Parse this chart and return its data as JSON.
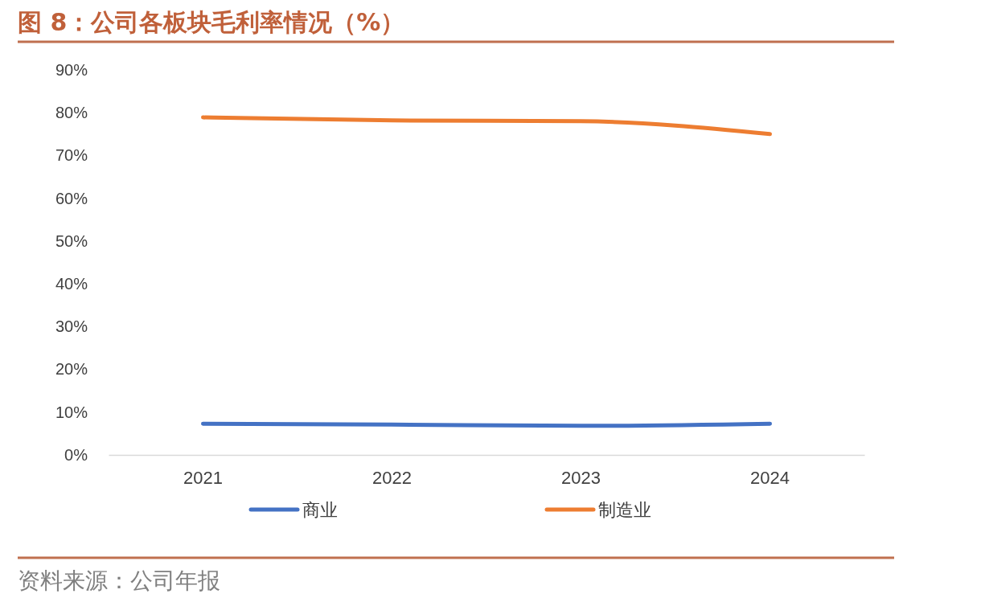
{
  "chart_data": {
    "type": "line",
    "title": "图 8：公司各板块毛利率情况（%）",
    "categories": [
      "2021",
      "2022",
      "2023",
      "2024"
    ],
    "series": [
      {
        "name": "商业",
        "color": "#4472c4",
        "values": [
          7.3,
          7.1,
          6.8,
          7.3
        ]
      },
      {
        "name": "制造业",
        "color": "#ed7d31",
        "values": [
          78.9,
          78.2,
          78.0,
          75.0
        ]
      }
    ],
    "ylim": [
      0,
      90
    ],
    "yticks": [
      {
        "value": 0,
        "label": "0%"
      },
      {
        "value": 10,
        "label": "10%"
      },
      {
        "value": 20,
        "label": "20%"
      },
      {
        "value": 30,
        "label": "30%"
      },
      {
        "value": 40,
        "label": "40%"
      },
      {
        "value": 50,
        "label": "50%"
      },
      {
        "value": 60,
        "label": "60%"
      },
      {
        "value": 70,
        "label": "70%"
      },
      {
        "value": 80,
        "label": "80%"
      },
      {
        "value": 90,
        "label": "90%"
      }
    ],
    "grid": false,
    "legend": "bottom",
    "marker": "none",
    "line_style": "solid",
    "annotations": [
      "资料来源：公司年报"
    ]
  }
}
